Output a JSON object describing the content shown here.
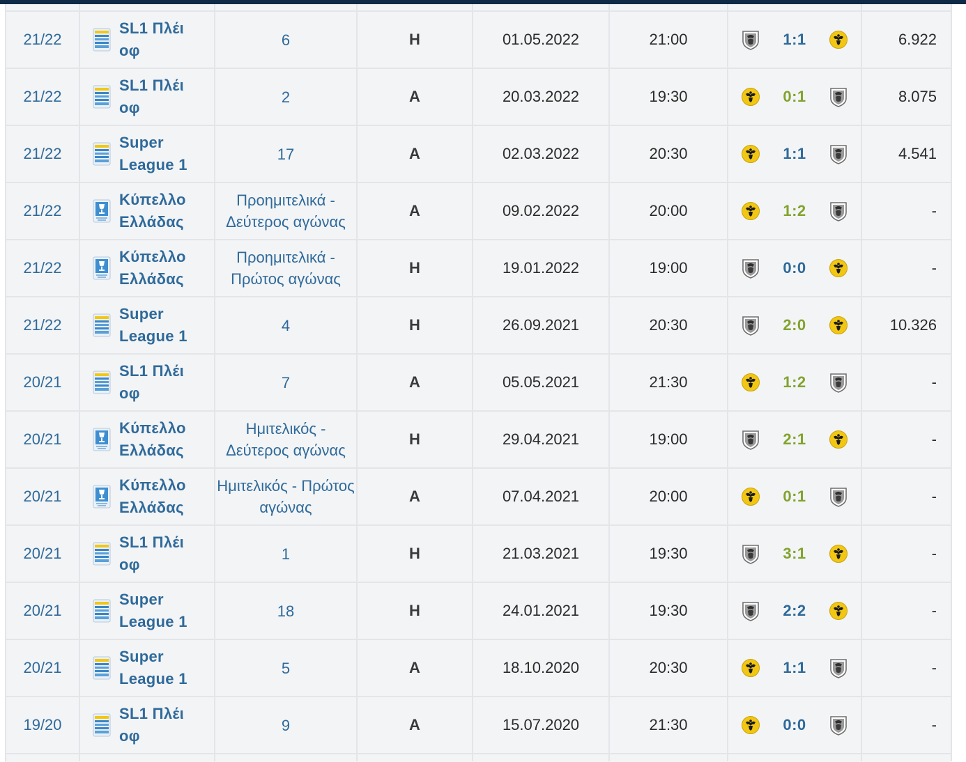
{
  "colors": {
    "link_blue": "#2f6a9a",
    "score_green": "#82a32d",
    "top_bar": "#0e2a47",
    "aek_yellow": "#f2c713",
    "paok_grey": "#8a8a8a"
  },
  "icons": {
    "sl1": "super-league-logo-icon",
    "cup": "greek-cup-logo-icon",
    "paok": "paok-crest-icon",
    "aek": "aek-crest-icon"
  },
  "matches": [
    {
      "season": "21/22",
      "comp_icon": "sl1",
      "competition": "SL1 Πλέι οφ",
      "round": "6",
      "venue": "H",
      "date": "01.05.2022",
      "time": "21:00",
      "home": "paok",
      "score": "1:1",
      "score_color": "blue",
      "away": "aek",
      "attendance": "6.922"
    },
    {
      "season": "21/22",
      "comp_icon": "sl1",
      "competition": "SL1 Πλέι οφ",
      "round": "2",
      "venue": "A",
      "date": "20.03.2022",
      "time": "19:30",
      "home": "aek",
      "score": "0:1",
      "score_color": "green",
      "away": "paok",
      "attendance": "8.075"
    },
    {
      "season": "21/22",
      "comp_icon": "sl1",
      "competition": "Super League 1",
      "round": "17",
      "venue": "A",
      "date": "02.03.2022",
      "time": "20:30",
      "home": "aek",
      "score": "1:1",
      "score_color": "blue",
      "away": "paok",
      "attendance": "4.541"
    },
    {
      "season": "21/22",
      "comp_icon": "cup",
      "competition": "Κύπελλο Ελλάδας",
      "round": "Προημιτελικά - Δεύτερος αγώνας",
      "venue": "A",
      "date": "09.02.2022",
      "time": "20:00",
      "home": "aek",
      "score": "1:2",
      "score_color": "green",
      "away": "paok",
      "attendance": "-"
    },
    {
      "season": "21/22",
      "comp_icon": "cup",
      "competition": "Κύπελλο Ελλάδας",
      "round": "Προημιτελικά - Πρώτος αγώνας",
      "venue": "H",
      "date": "19.01.2022",
      "time": "19:00",
      "home": "paok",
      "score": "0:0",
      "score_color": "blue",
      "away": "aek",
      "attendance": "-"
    },
    {
      "season": "21/22",
      "comp_icon": "sl1",
      "competition": "Super League 1",
      "round": "4",
      "venue": "H",
      "date": "26.09.2021",
      "time": "20:30",
      "home": "paok",
      "score": "2:0",
      "score_color": "green",
      "away": "aek",
      "attendance": "10.326"
    },
    {
      "season": "20/21",
      "comp_icon": "sl1",
      "competition": "SL1 Πλέι οφ",
      "round": "7",
      "venue": "A",
      "date": "05.05.2021",
      "time": "21:30",
      "home": "aek",
      "score": "1:2",
      "score_color": "green",
      "away": "paok",
      "attendance": "-"
    },
    {
      "season": "20/21",
      "comp_icon": "cup",
      "competition": "Κύπελλο Ελλάδας",
      "round": "Ημιτελικός - Δεύτερος αγώνας",
      "venue": "H",
      "date": "29.04.2021",
      "time": "19:00",
      "home": "paok",
      "score": "2:1",
      "score_color": "green",
      "away": "aek",
      "attendance": "-"
    },
    {
      "season": "20/21",
      "comp_icon": "cup",
      "competition": "Κύπελλο Ελλάδας",
      "round": "Ημιτελικός - Πρώτος αγώνας",
      "venue": "A",
      "date": "07.04.2021",
      "time": "20:00",
      "home": "aek",
      "score": "0:1",
      "score_color": "green",
      "away": "paok",
      "attendance": "-"
    },
    {
      "season": "20/21",
      "comp_icon": "sl1",
      "competition": "SL1 Πλέι οφ",
      "round": "1",
      "venue": "H",
      "date": "21.03.2021",
      "time": "19:30",
      "home": "paok",
      "score": "3:1",
      "score_color": "green",
      "away": "aek",
      "attendance": "-"
    },
    {
      "season": "20/21",
      "comp_icon": "sl1",
      "competition": "Super League 1",
      "round": "18",
      "venue": "H",
      "date": "24.01.2021",
      "time": "19:30",
      "home": "paok",
      "score": "2:2",
      "score_color": "blue",
      "away": "aek",
      "attendance": "-"
    },
    {
      "season": "20/21",
      "comp_icon": "sl1",
      "competition": "Super League 1",
      "round": "5",
      "venue": "A",
      "date": "18.10.2020",
      "time": "20:30",
      "home": "aek",
      "score": "1:1",
      "score_color": "blue",
      "away": "paok",
      "attendance": "-"
    },
    {
      "season": "19/20",
      "comp_icon": "sl1",
      "competition": "SL1 Πλέι οφ",
      "round": "9",
      "venue": "A",
      "date": "15.07.2020",
      "time": "21:30",
      "home": "aek",
      "score": "0:0",
      "score_color": "blue",
      "away": "paok",
      "attendance": "-"
    }
  ]
}
